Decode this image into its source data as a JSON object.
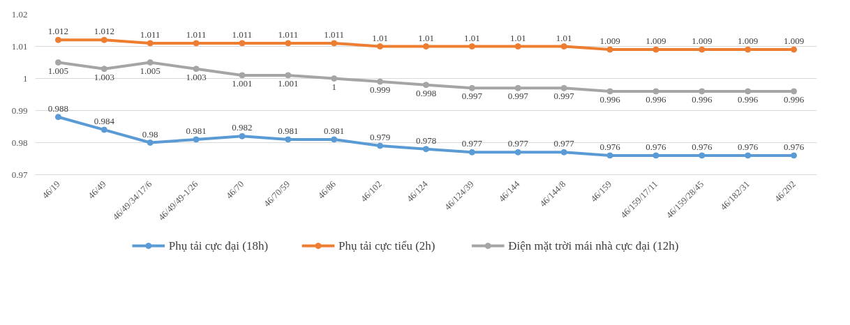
{
  "chart_data": {
    "type": "line",
    "categories": [
      "46/19",
      "46/49",
      "46/49/34/17/6",
      "46/49/49-1/26",
      "46/70",
      "46/70/59",
      "46/86",
      "46/102",
      "46/124",
      "46/124/39",
      "46/144",
      "46/144/8",
      "46/159",
      "46/159/17/11",
      "46/159/28/45",
      "46/182/31",
      "46/202"
    ],
    "series": [
      {
        "name": "Phụ tải cực đại (18h)",
        "color": "#5b9bd5",
        "values": [
          0.988,
          0.984,
          0.98,
          0.981,
          0.982,
          0.981,
          0.981,
          0.979,
          0.978,
          0.977,
          0.977,
          0.977,
          0.976,
          0.976,
          0.976,
          0.976,
          0.976
        ]
      },
      {
        "name": "Phụ tải cực tiểu (2h)",
        "color": "#ed7d31",
        "values": [
          1.012,
          1.012,
          1.011,
          1.011,
          1.011,
          1.011,
          1.011,
          1.01,
          1.01,
          1.01,
          1.01,
          1.01,
          1.009,
          1.009,
          1.009,
          1.009,
          1.009
        ]
      },
      {
        "name": "Điện mặt trời mái nhà cực đại (12h)",
        "color": "#a5a5a5",
        "values": [
          1.005,
          1.003,
          1.005,
          1.003,
          1.001,
          1.001,
          1,
          0.999,
          0.998,
          0.997,
          0.997,
          0.997,
          0.996,
          0.996,
          0.996,
          0.996,
          0.996
        ]
      }
    ],
    "ylim": [
      0.97,
      1.02
    ],
    "yticks": [
      0.97,
      0.98,
      0.99,
      1,
      1.01,
      1.02
    ],
    "grid": "y",
    "legend": "bottom",
    "marker": "circle",
    "line_style": "solid",
    "data_labels": true
  }
}
